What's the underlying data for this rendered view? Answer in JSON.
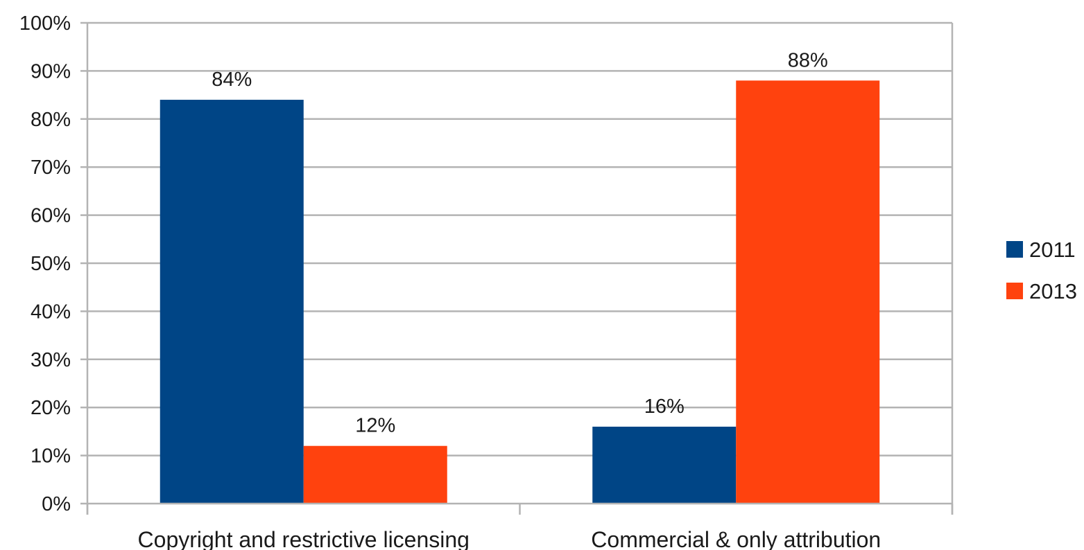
{
  "chart_data": {
    "type": "bar",
    "categories": [
      "Copyright and restrictive licensing",
      "Commercial & only attribution"
    ],
    "series": [
      {
        "name": "2011",
        "values": [
          84,
          16
        ],
        "color": "#004586",
        "labels": [
          "84%",
          "16%"
        ]
      },
      {
        "name": "2013",
        "values": [
          12,
          88
        ],
        "color": "#ff420e",
        "labels": [
          "12%",
          "88%"
        ]
      }
    ],
    "ylim": [
      0,
      100
    ],
    "y_ticks": [
      0,
      10,
      20,
      30,
      40,
      50,
      60,
      70,
      80,
      90,
      100
    ],
    "y_tick_labels": [
      "0%",
      "10%",
      "20%",
      "30%",
      "40%",
      "50%",
      "60%",
      "70%",
      "80%",
      "90%",
      "100%"
    ],
    "grid": true,
    "legend_position": "right",
    "title": "",
    "xlabel": "",
    "ylabel": ""
  }
}
